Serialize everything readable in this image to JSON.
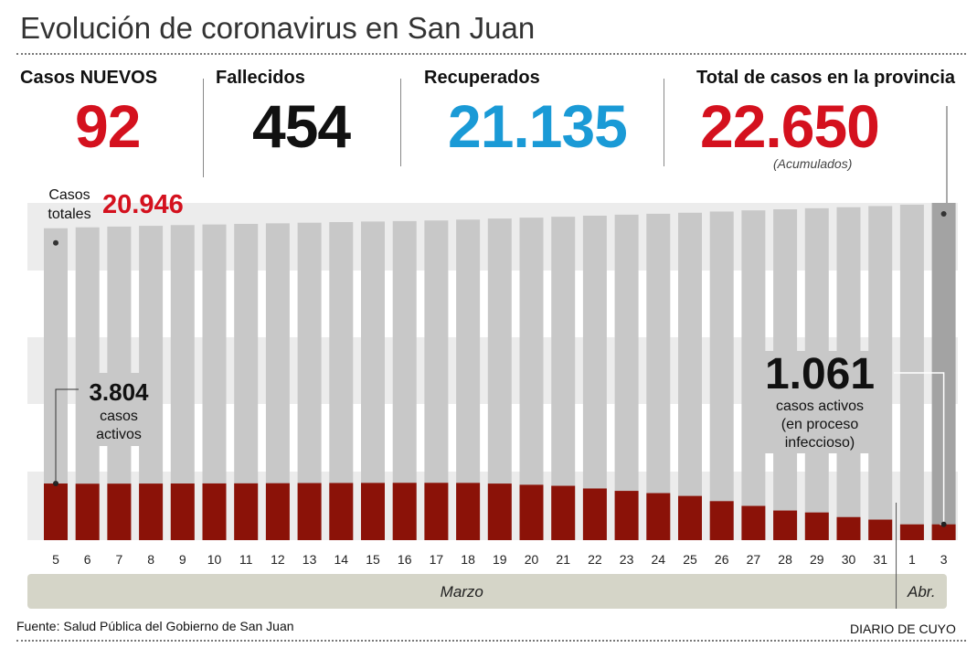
{
  "header": {
    "title": "Evolución de coronavirus en San Juan"
  },
  "stats": {
    "nuevos_label": "Casos NUEVOS",
    "nuevos_value": "92",
    "fallecidos_label": "Fallecidos",
    "fallecidos_value": "454",
    "recuperados_label": "Recuperados",
    "recuperados_value": "21.135",
    "total_label": "Total de casos en la provincia",
    "total_value": "22.650",
    "total_note": "(Acumulados)"
  },
  "annotations": {
    "casos_totales_line1": "Casos",
    "casos_totales_line2": "totales",
    "casos_totales_value": "20.946",
    "first_active_value": "3.804",
    "first_active_line1": "casos",
    "first_active_line2": "activos",
    "last_active_value": "1.061",
    "last_active_line1": "casos activos",
    "last_active_line2": "(en proceso",
    "last_active_line3": "infeccioso)"
  },
  "footer": {
    "source": "Fuente: Salud Pública del Gobierno de San Juan",
    "brand": "DIARIO DE CUYO"
  },
  "colors": {
    "red": "#d4111e",
    "blue": "#1a9ad6",
    "dark_red": "#8b1208",
    "bar_gray": "#c8c8c8",
    "bar_gray_dark": "#a3a3a3",
    "band": "#ececec",
    "month_bar": "#d5d5c8"
  },
  "chart_data": {
    "type": "bar",
    "categories": [
      "5",
      "6",
      "7",
      "8",
      "9",
      "10",
      "11",
      "12",
      "13",
      "14",
      "15",
      "16",
      "17",
      "18",
      "19",
      "20",
      "21",
      "22",
      "23",
      "24",
      "25",
      "26",
      "27",
      "28",
      "29",
      "30",
      "31",
      "1",
      "3"
    ],
    "series": [
      {
        "name": "Casos totales",
        "values": [
          20946,
          21010,
          21060,
          21110,
          21160,
          21200,
          21240,
          21280,
          21320,
          21360,
          21400,
          21430,
          21470,
          21530,
          21600,
          21660,
          21720,
          21790,
          21860,
          21920,
          21990,
          22070,
          22150,
          22220,
          22290,
          22360,
          22440,
          22530,
          22650
        ]
      },
      {
        "name": "casos activos",
        "values": [
          3804,
          3790,
          3795,
          3800,
          3805,
          3810,
          3815,
          3825,
          3835,
          3840,
          3845,
          3850,
          3850,
          3845,
          3800,
          3720,
          3650,
          3470,
          3310,
          3160,
          2970,
          2620,
          2300,
          1990,
          1860,
          1550,
          1380,
          1061,
          1061
        ]
      }
    ],
    "months": [
      {
        "label": "Marzo",
        "from": 0,
        "to": 26
      },
      {
        "label": "Abr.",
        "from": 27,
        "to": 28
      }
    ],
    "ylim": [
      0,
      22650
    ]
  }
}
